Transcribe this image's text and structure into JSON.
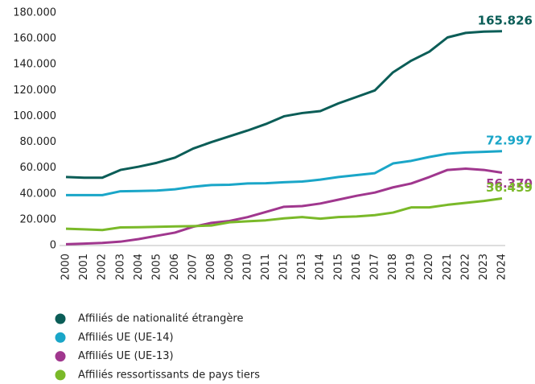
{
  "chart_data": {
    "type": "line",
    "categories": [
      "2000",
      "2001",
      "2002",
      "2003",
      "2004",
      "2005",
      "2006",
      "2007",
      "2008",
      "2009",
      "2010",
      "2011",
      "2012",
      "2013",
      "2014",
      "2015",
      "2016",
      "2017",
      "2018",
      "2019",
      "2020",
      "2021",
      "2022",
      "2023",
      "2024"
    ],
    "ylim": [
      0,
      180000
    ],
    "yticks": [
      0,
      {
        "value": 20000,
        "label": "20.000"
      },
      {
        "value": 40000,
        "label": "40.000"
      },
      {
        "value": 60000,
        "label": "60.000"
      },
      {
        "value": 80000,
        "label": "80.000"
      },
      {
        "value": 100000,
        "label": "100.000"
      },
      {
        "value": 120000,
        "label": "120.000"
      },
      {
        "value": 140000,
        "label": "140.000"
      },
      {
        "value": 160000,
        "label": "160.000"
      },
      {
        "value": 180000,
        "label": "180.000"
      }
    ],
    "legend": "bottom",
    "series": [
      {
        "name": "Affiliés de nationalité étrangère",
        "color": "#0b5d57",
        "values": [
          53000,
          52500,
          52500,
          58500,
          61000,
          64000,
          68000,
          75000,
          80000,
          84500,
          89000,
          94000,
          100000,
          102500,
          104000,
          110000,
          115000,
          120000,
          134000,
          143000,
          150000,
          161000,
          164500,
          165500,
          165826
        ],
        "value_labels": {
          "24": "165.826"
        }
      },
      {
        "name": "Affiliés UE (UE-14)",
        "color": "#1aa6c8",
        "values": [
          39000,
          39000,
          39000,
          42000,
          42200,
          42500,
          43500,
          45500,
          46800,
          47000,
          48000,
          48200,
          49000,
          49500,
          51000,
          53000,
          54500,
          56000,
          63500,
          65500,
          68500,
          71000,
          72000,
          72500,
          72997
        ],
        "value_labels": {
          "24": "72.997"
        }
      },
      {
        "name": "Affiliés UE (UE-13)",
        "color": "#a0378e",
        "values": [
          1000,
          1500,
          2000,
          3000,
          5000,
          7500,
          10000,
          14500,
          17500,
          19000,
          22000,
          26000,
          30000,
          30500,
          32500,
          35500,
          38500,
          41000,
          45000,
          48000,
          53000,
          58500,
          59500,
          58500,
          56370
        ],
        "value_labels": {
          "24": "56.370"
        }
      },
      {
        "name": "Affiliés ressortissants de pays tiers",
        "color": "#7ab929",
        "values": [
          13000,
          12500,
          12000,
          14000,
          14200,
          14500,
          14800,
          15000,
          15500,
          18000,
          18800,
          19500,
          21000,
          22000,
          20800,
          22000,
          22500,
          23500,
          25500,
          29500,
          29500,
          31500,
          33000,
          34500,
          36459
        ],
        "value_labels": {
          "24": "36.459"
        }
      }
    ]
  }
}
